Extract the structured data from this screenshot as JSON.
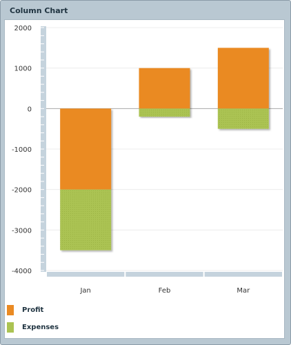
{
  "panel": {
    "title": "Column Chart"
  },
  "colors": {
    "profit": "#ea8a23",
    "expenses": "#abc352"
  },
  "chart_data": {
    "type": "bar",
    "stacked": true,
    "categories": [
      "Jan",
      "Feb",
      "Mar"
    ],
    "series": [
      {
        "name": "Profit",
        "values": [
          -2000,
          1000,
          1500
        ]
      },
      {
        "name": "Expenses",
        "values": [
          -1500,
          -200,
          -500
        ]
      }
    ],
    "ylim": [
      -4000,
      2000
    ],
    "yticks": [
      2000,
      1000,
      0,
      -1000,
      -2000,
      -3000,
      -4000
    ],
    "ytick_labels": [
      "2000",
      "1000",
      "0",
      "-1000",
      "-2000",
      "-3000",
      "-4000"
    ],
    "title": "",
    "xlabel": "",
    "ylabel": "",
    "grid": true,
    "legend": "bottom-left"
  }
}
